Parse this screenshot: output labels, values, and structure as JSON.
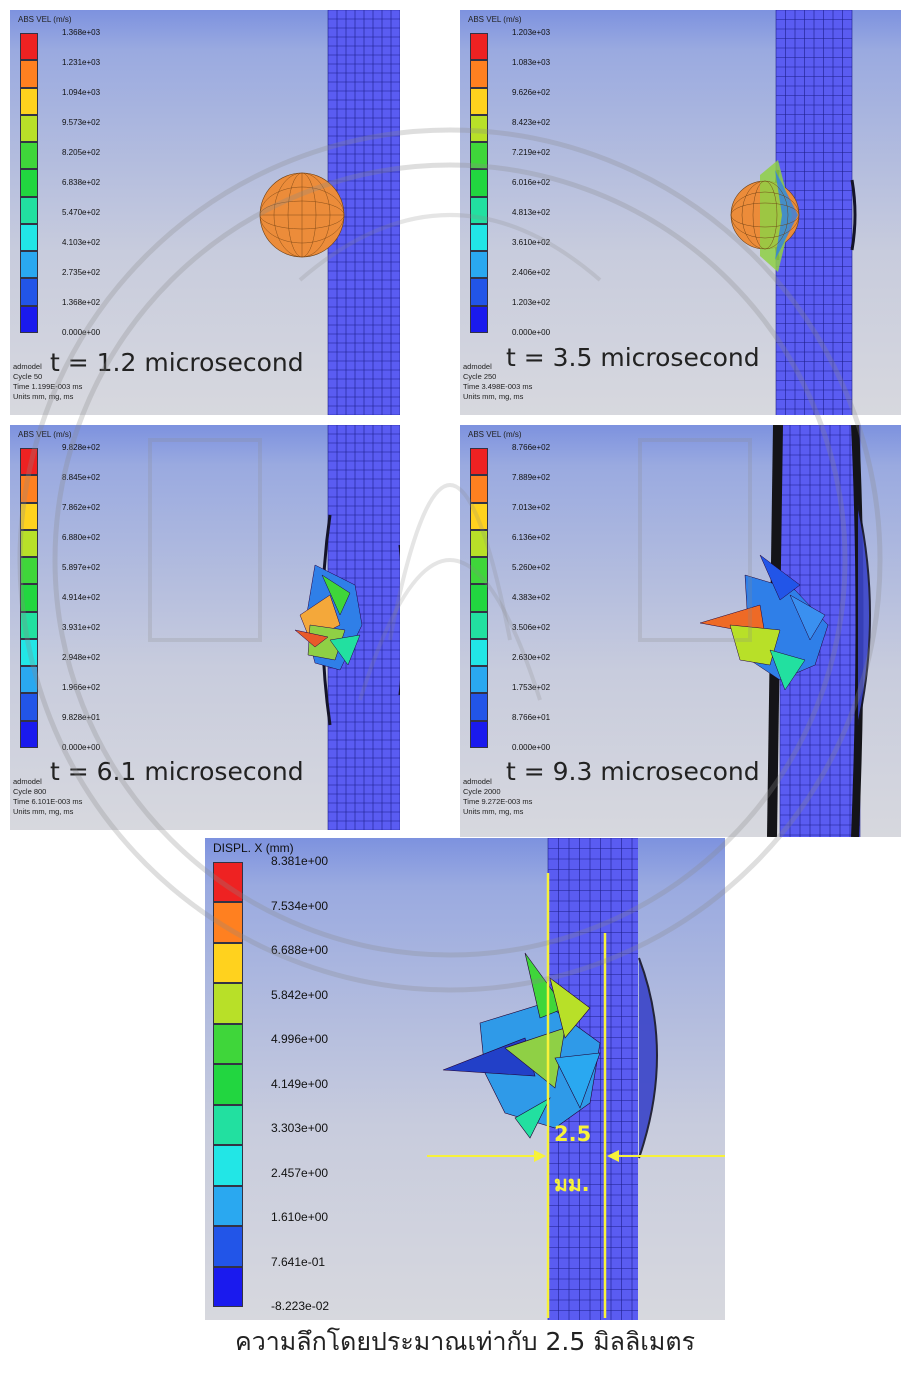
{
  "panels": [
    {
      "id": "p1",
      "legend_title": "ABS VEL (m/s)",
      "legend_values": [
        "1.368e+03",
        "1.231e+03",
        "1.094e+03",
        "9.573e+02",
        "8.205e+02",
        "6.838e+02",
        "5.470e+02",
        "4.103e+02",
        "2.735e+02",
        "1.368e+02",
        "0.000e+00"
      ],
      "caption": "t = 1.2 microsecond",
      "info": [
        "admodel",
        "Cycle 50",
        "Time 1.199E-003 ms",
        "Units mm, mg, ms"
      ]
    },
    {
      "id": "p2",
      "legend_title": "ABS VEL (m/s)",
      "legend_values": [
        "1.203e+03",
        "1.083e+03",
        "9.626e+02",
        "8.423e+02",
        "7.219e+02",
        "6.016e+02",
        "4.813e+02",
        "3.610e+02",
        "2.406e+02",
        "1.203e+02",
        "0.000e+00"
      ],
      "caption": "t = 3.5 microsecond",
      "info": [
        "admodel",
        "Cycle 250",
        "Time 3.498E-003 ms",
        "Units mm, mg, ms"
      ]
    },
    {
      "id": "p3",
      "legend_title": "ABS VEL (m/s)",
      "legend_values": [
        "9.828e+02",
        "8.845e+02",
        "7.862e+02",
        "6.880e+02",
        "5.897e+02",
        "4.914e+02",
        "3.931e+02",
        "2.948e+02",
        "1.966e+02",
        "9.828e+01",
        "0.000e+00"
      ],
      "caption": "t = 6.1 microsecond",
      "info": [
        "admodel",
        "Cycle 800",
        "Time 6.101E-003 ms",
        "Units mm, mg, ms"
      ]
    },
    {
      "id": "p4",
      "legend_title": "ABS VEL (m/s)",
      "legend_values": [
        "8.766e+02",
        "7.889e+02",
        "7.013e+02",
        "6.136e+02",
        "5.260e+02",
        "4.383e+02",
        "3.506e+02",
        "2.630e+02",
        "1.753e+02",
        "8.766e+01",
        "0.000e+00"
      ],
      "caption": "t = 9.3 microsecond",
      "info": [
        "admodel",
        "Cycle 2000",
        "Time 9.272E-003 ms",
        "Units mm, mg, ms"
      ]
    }
  ],
  "bottom_panel": {
    "legend_title": "DISPL. X (mm)",
    "legend_values": [
      "8.381e+00",
      "7.534e+00",
      "6.688e+00",
      "5.842e+00",
      "4.996e+00",
      "4.149e+00",
      "3.303e+00",
      "2.457e+00",
      "1.610e+00",
      "7.641e-01",
      "-8.223e-02"
    ],
    "depth_value": "2.5",
    "depth_unit": "มม.",
    "caption": "ความลึกโดยประมาณเท่ากับ 2.5 มิลลิเมตร"
  },
  "colors": {
    "legend_scale": [
      "#ee2222",
      "#ff8020",
      "#ffd21e",
      "#b8e028",
      "#3fd63a",
      "#22d640",
      "#22e0a0",
      "#22e6e6",
      "#2aa8f0",
      "#2255e8",
      "#1a1aee"
    ],
    "plate_fill": "#5a5cf2",
    "plate_grid": "#1c1e8a",
    "sphere_orange": "#ec8c3a",
    "annotation_yellow": "#f7f23a"
  }
}
